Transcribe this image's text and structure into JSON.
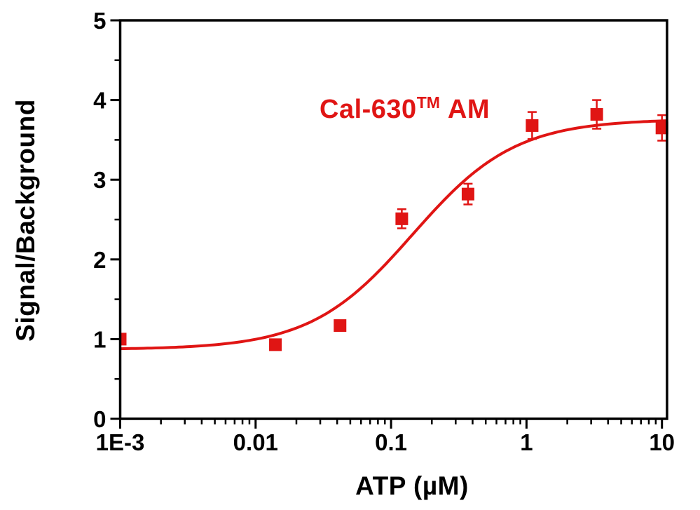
{
  "colors": {
    "accent": "#e01514",
    "axis": "#000000",
    "background": "#ffffff"
  },
  "chart_data": {
    "type": "scatter",
    "title_main": "Cal-630",
    "title_sup": "TM",
    "title_tail": "AM",
    "xlabel": "ATP (µM)",
    "ylabel": "Signal/Background",
    "x_scale": "log",
    "x_range": [
      0.001,
      10.9
    ],
    "ylim": [
      0,
      5
    ],
    "grid": false,
    "legend_position": "none",
    "x_ticks": [
      {
        "value": 0.001,
        "label": "1E-3"
      },
      {
        "value": 0.01,
        "label": "0.01"
      },
      {
        "value": 0.1,
        "label": "0.1"
      },
      {
        "value": 1,
        "label": "1"
      },
      {
        "value": 10,
        "label": "10"
      }
    ],
    "x_minor_decades": [
      -3,
      -2,
      -1,
      0
    ],
    "y_ticks": [
      {
        "value": 0,
        "label": "0"
      },
      {
        "value": 1,
        "label": "1"
      },
      {
        "value": 2,
        "label": "2"
      },
      {
        "value": 3,
        "label": "3"
      },
      {
        "value": 4,
        "label": "4"
      },
      {
        "value": 5,
        "label": "5"
      }
    ],
    "y_minor_values": [
      0.5,
      1.5,
      2.5,
      3.5,
      4.5
    ],
    "series": [
      {
        "name": "Cal-630 AM",
        "color": "#e01514",
        "marker": "square",
        "marker_size": 18,
        "points": [
          {
            "x": 0.001,
            "y": 1.0,
            "err": 0
          },
          {
            "x": 0.014,
            "y": 0.93,
            "err": 0
          },
          {
            "x": 0.042,
            "y": 1.17,
            "err": 0
          },
          {
            "x": 0.12,
            "y": 2.51,
            "err": 0.12
          },
          {
            "x": 0.37,
            "y": 2.82,
            "err": 0.13
          },
          {
            "x": 1.1,
            "y": 3.68,
            "err": 0.17
          },
          {
            "x": 3.3,
            "y": 3.82,
            "err": 0.18
          },
          {
            "x": 10,
            "y": 3.65,
            "err": 0.16
          }
        ],
        "fit": {
          "model": "logistic4",
          "bottom": 0.87,
          "top": 3.76,
          "log_ec50": -0.84,
          "hill": 1.15
        }
      }
    ]
  }
}
